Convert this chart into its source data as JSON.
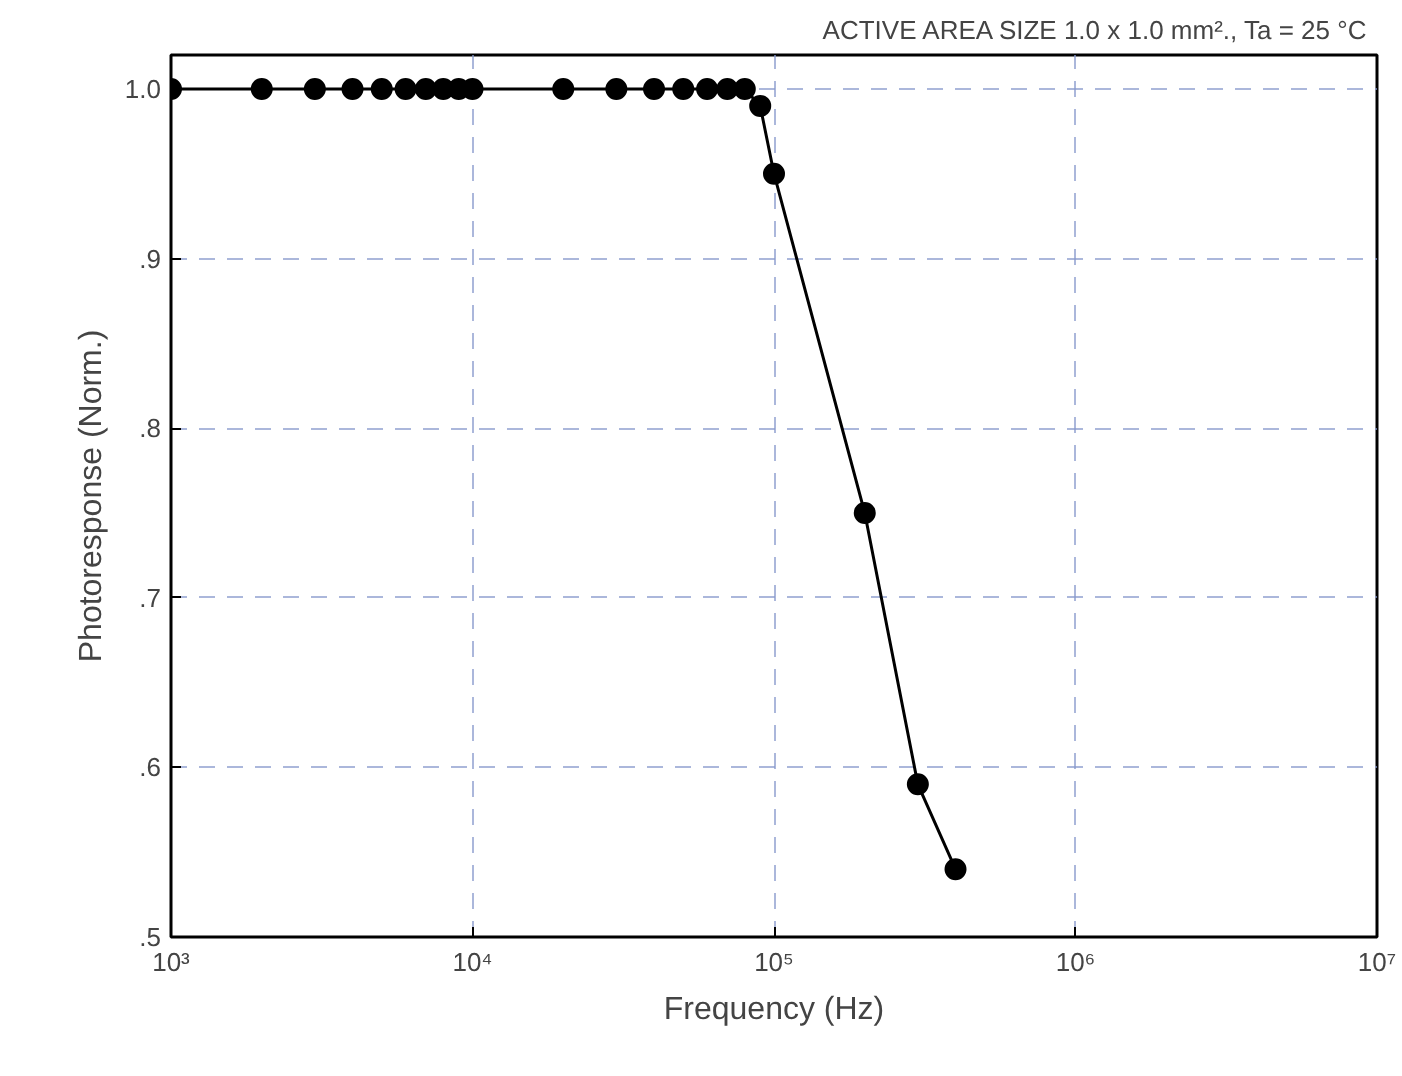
{
  "chart_data": {
    "type": "line",
    "xlabel": "Frequency (Hz)",
    "ylabel": "Photoresponse (Norm.)",
    "annotations": [
      "ACTIVE AREA SIZE 1.0 x 1.0  mm²., Ta = 25 °C"
    ],
    "log": "x",
    "grid": true,
    "marker": "circle",
    "line_style": "solid",
    "xlim": [
      1000,
      10000000
    ],
    "ylim": [
      0.5,
      1.02
    ],
    "xticks": [
      {
        "value": 1000,
        "label": "10³"
      },
      {
        "value": 10000,
        "label": "10⁴"
      },
      {
        "value": 100000,
        "label": "10⁵"
      },
      {
        "value": 1000000,
        "label": "10⁶"
      },
      {
        "value": 10000000,
        "label": "10⁷"
      }
    ],
    "yticks": [
      {
        "value": 0.5,
        "label": ".5"
      },
      {
        "value": 0.6,
        "label": ".6"
      },
      {
        "value": 0.7,
        "label": ".7"
      },
      {
        "value": 0.8,
        "label": ".8"
      },
      {
        "value": 0.9,
        "label": ".9"
      },
      {
        "value": 1.0,
        "label": "1.0"
      }
    ],
    "x": [
      1000,
      2000,
      3000,
      4000,
      5000,
      6000,
      7000,
      8000,
      9000,
      10000,
      20000,
      30000,
      40000,
      50000,
      60000,
      70000,
      80000,
      90000,
      100000,
      200000,
      300000,
      400000
    ],
    "series": [
      {
        "color": "#000000",
        "values": [
          1.0,
          1.0,
          1.0,
          1.0,
          1.0,
          1.0,
          1.0,
          1.0,
          1.0,
          1.0,
          1.0,
          1.0,
          1.0,
          1.0,
          1.0,
          1.0,
          1.0,
          0.99,
          0.95,
          0.75,
          0.59,
          0.54
        ]
      }
    ]
  }
}
